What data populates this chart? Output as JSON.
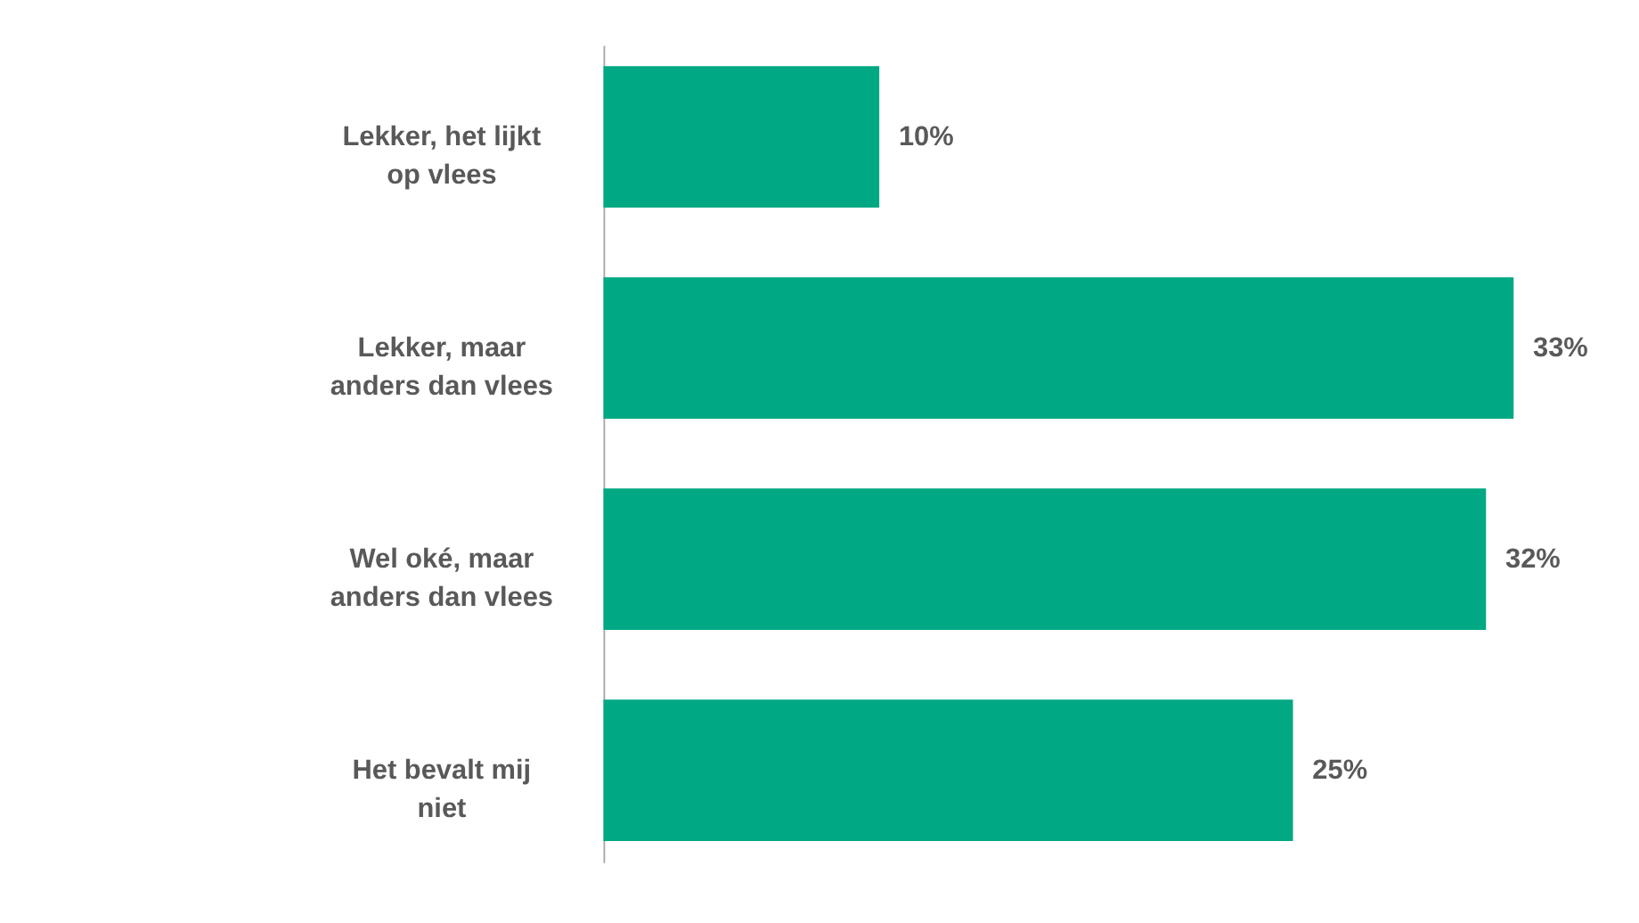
{
  "chart_data": {
    "type": "bar",
    "orientation": "horizontal",
    "categories": [
      "Lekker, het lijkt op vlees",
      "Lekker, maar anders dan vlees",
      "Wel oké, maar anders dan vlees",
      "Het bevalt mij niet"
    ],
    "values": [
      10,
      33,
      32,
      25
    ],
    "value_labels": [
      "10%",
      "33%",
      "32%",
      "25%"
    ],
    "color": "#00a884",
    "grid": false
  }
}
